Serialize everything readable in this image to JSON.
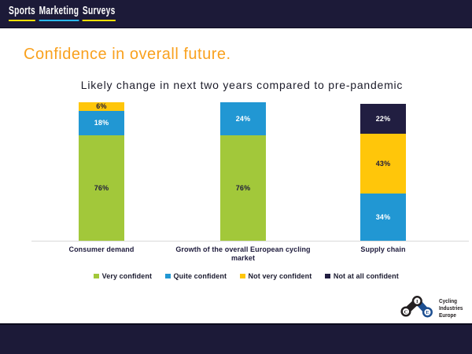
{
  "slide": {
    "background": "#ffffff",
    "navy": "#1e1b3c"
  },
  "header": {
    "bar_color": "#1c1a38",
    "logo_words": [
      {
        "text": "Sports",
        "underline_color": "#ffdf00"
      },
      {
        "text": "Marketing",
        "underline_color": "#29b8ec"
      },
      {
        "text": "Surveys",
        "underline_color": "#ffdf00"
      }
    ],
    "logo_text_color": "#ffffff"
  },
  "title": {
    "text": "Confidence in overall future.",
    "color": "#f9a11e"
  },
  "chart_data": {
    "type": "bar",
    "stacked": true,
    "orientation": "vertical",
    "title": "Likely change in next two years compared to pre-pandemic",
    "value_unit": "%",
    "ylim": [
      0,
      100
    ],
    "grid": false,
    "axis_line_color": "#d9d9d9",
    "legend_position": "bottom",
    "data_labels": "percent",
    "categories": [
      "Consumer demand",
      "Growth of the overall European cycling market",
      "Supply chain"
    ],
    "series": [
      {
        "name": "Very confident",
        "color": "#a2c83a",
        "label_color": "#1e1b3c",
        "values": [
          76,
          76,
          0
        ]
      },
      {
        "name": "Quite confident",
        "color": "#2197d3",
        "label_color": "#ffffff",
        "values": [
          18,
          24,
          34
        ]
      },
      {
        "name": "Not very confident",
        "color": "#ffc60a",
        "label_color": "#1e1b3c",
        "values": [
          6,
          0,
          43
        ]
      },
      {
        "name": "Not at all confident",
        "color": "#211e41",
        "label_color": "#ffffff",
        "values": [
          0,
          0,
          22
        ]
      }
    ]
  },
  "footer": {
    "bar_color": "#1c1a38"
  },
  "footer_logo": {
    "letters": {
      "c": "C",
      "i": "I",
      "e": "E"
    },
    "lines": [
      "Cycling",
      "Industries",
      "Europe"
    ],
    "icon_black": "#231f20",
    "icon_blue": "#1d4f91",
    "text_color": "#231f20"
  }
}
